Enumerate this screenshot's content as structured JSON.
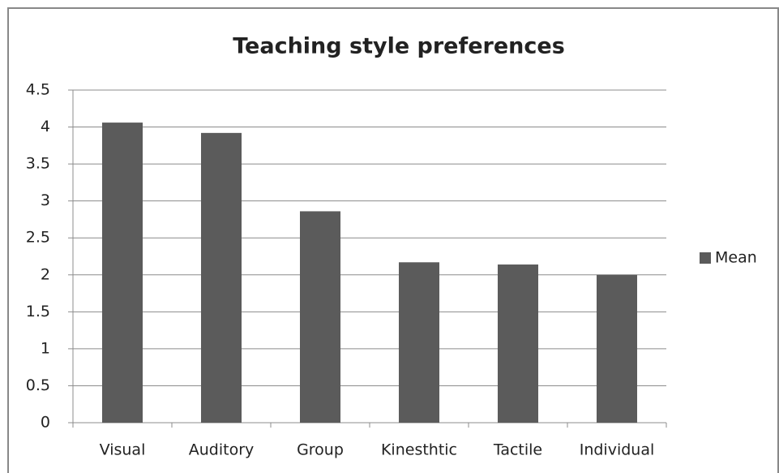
{
  "chart_data": {
    "type": "bar",
    "title": "Teaching style preferences",
    "categories": [
      "Visual",
      "Auditory",
      "Group",
      "Kinesthtic",
      "Tactile",
      "Individual"
    ],
    "series": [
      {
        "name": "Mean",
        "color": "#5b5b5b",
        "values": [
          4.06,
          3.92,
          2.86,
          2.17,
          2.14,
          2.0
        ]
      }
    ],
    "ylim": [
      0,
      4.5
    ],
    "yticks": [
      0,
      0.5,
      1,
      1.5,
      2,
      2.5,
      3,
      3.5,
      4,
      4.5
    ],
    "grid": true,
    "legend": "right"
  }
}
